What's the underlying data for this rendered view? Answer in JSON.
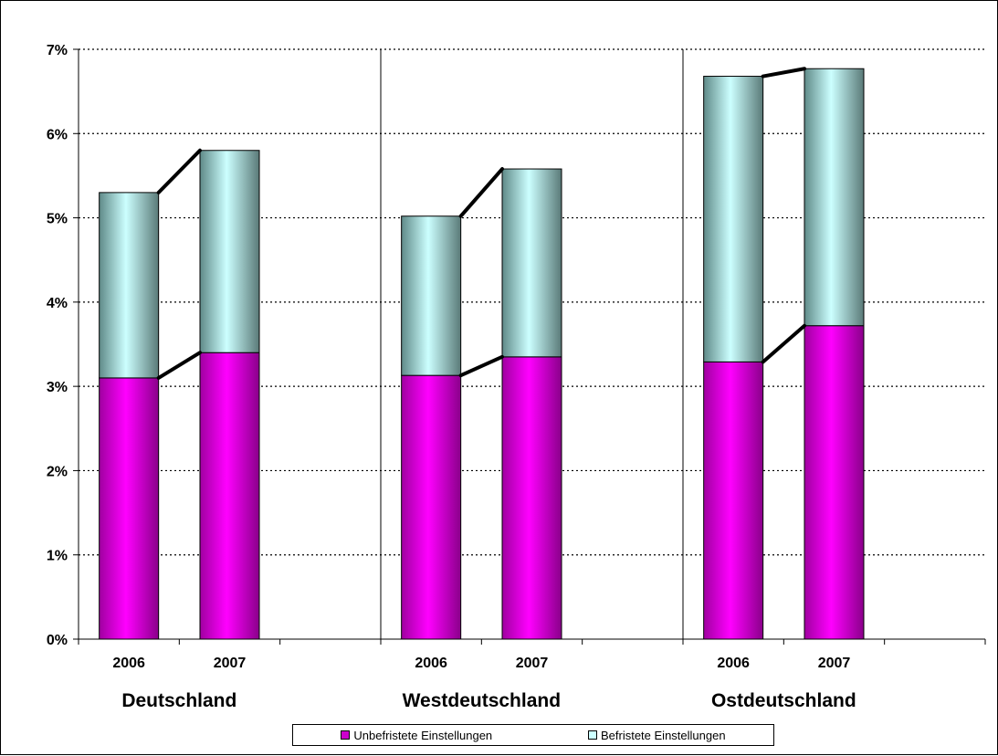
{
  "chart_data": {
    "type": "bar",
    "stacked": true,
    "ylim": [
      0,
      7
    ],
    "y_ticks": [
      "0%",
      "1%",
      "2%",
      "3%",
      "4%",
      "5%",
      "6%",
      "7%"
    ],
    "y_tick_values": [
      0,
      1,
      2,
      3,
      4,
      5,
      6,
      7
    ],
    "grid": "horizontal dotted",
    "legend_position": "bottom",
    "groups": [
      "Deutschland",
      "Westdeutschland",
      "Ostdeutschland"
    ],
    "categories": [
      "2006",
      "2007",
      "2006",
      "2007",
      "2006",
      "2007"
    ],
    "series": [
      {
        "name": "Unbefristete Einstellungen",
        "color": "#cc00cc",
        "values": [
          3.1,
          3.4,
          3.13,
          3.35,
          3.29,
          3.72
        ]
      },
      {
        "name": "Befristete Einstellungen",
        "color": "#ccffff",
        "values": [
          2.2,
          2.4,
          1.89,
          2.23,
          3.39,
          3.05
        ]
      }
    ]
  }
}
